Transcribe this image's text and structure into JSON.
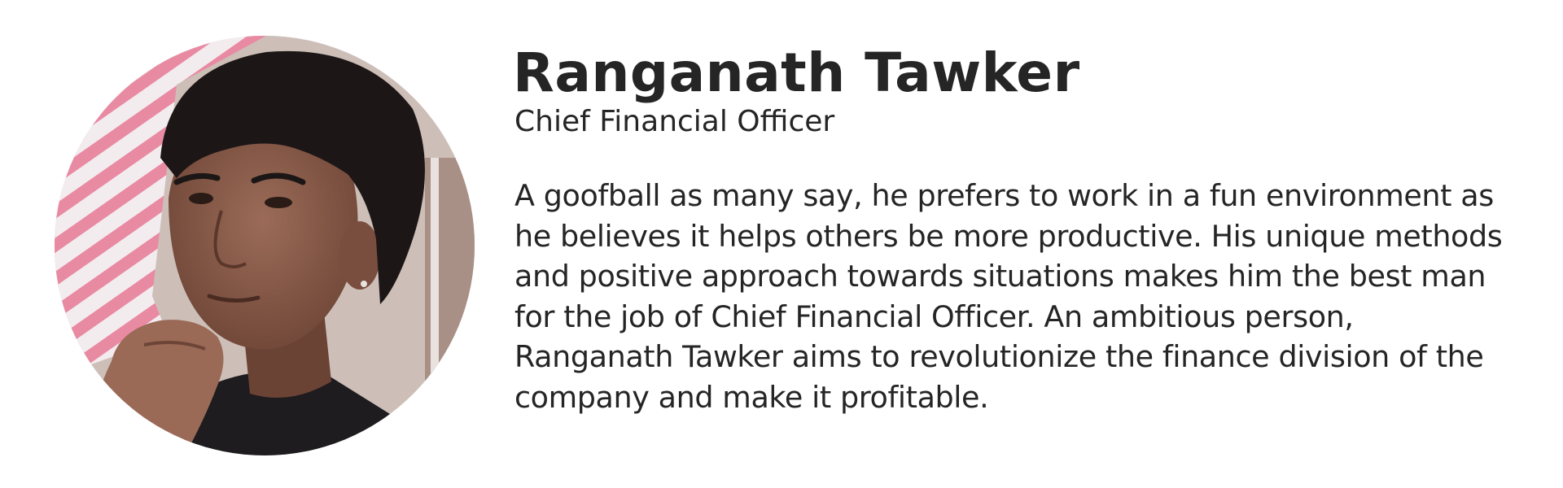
{
  "profile": {
    "name": "Ranganath Tawker",
    "role": "Chief Financial Officer",
    "bio_lines": [
      "A goofball as many say, he prefers to work in a fun environment as",
      "he believes it helps others be more productive. His unique methods",
      "and positive approach towards situations makes him the best man",
      "for the job of Chief Financial Officer. An ambitious person,",
      "Ranganath Tawker aims to revolutionize the finance division of the",
      "company and make it profitable."
    ]
  },
  "avatar": {
    "icon": "person-photo-icon",
    "colors": {
      "stripe_pink": "#e98aa3",
      "stripe_light": "#f3ecee",
      "wall": "#cdbfb8",
      "skin": "#8a5d4c",
      "hair": "#1c1716",
      "shirt": "#1e1c1f"
    }
  },
  "colors": {
    "text": "#252525",
    "background": "#ffffff"
  }
}
